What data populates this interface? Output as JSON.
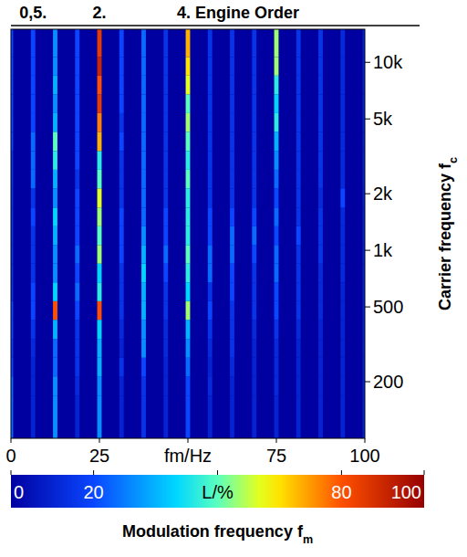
{
  "chart_data": {
    "type": "heatmap",
    "annotations": [
      {
        "text": "0,5.",
        "x": 6.25
      },
      {
        "text": "2.",
        "x": 25
      },
      {
        "text": "4. Engine Order",
        "x": 50
      }
    ],
    "x_label": "Modulation frequency fm",
    "y_label": "Carrier frequency fc",
    "x": [
      0,
      6.25,
      12.5,
      18.75,
      25,
      31.25,
      37.5,
      43.75,
      50,
      56.25,
      62.5,
      68.75,
      75,
      81.25,
      87.5,
      93.75,
      100
    ],
    "y": [
      150,
      190,
      240,
      300,
      380,
      480,
      600,
      760,
      950,
      1200,
      1500,
      1900,
      2400,
      3000,
      3800,
      4800,
      6000,
      7600,
      9500,
      12000
    ],
    "values": [
      [
        25,
        10,
        30,
        10,
        30,
        10,
        15,
        10,
        20,
        10,
        10,
        10,
        10,
        10,
        10,
        10,
        10
      ],
      [
        25,
        10,
        30,
        12,
        30,
        10,
        15,
        10,
        20,
        12,
        10,
        10,
        12,
        10,
        10,
        10,
        10
      ],
      [
        20,
        10,
        25,
        15,
        35,
        15,
        20,
        10,
        25,
        10,
        12,
        10,
        12,
        10,
        10,
        10,
        10
      ],
      [
        18,
        12,
        25,
        15,
        35,
        10,
        30,
        12,
        30,
        12,
        15,
        10,
        12,
        10,
        10,
        10,
        10
      ],
      [
        20,
        15,
        35,
        15,
        40,
        12,
        30,
        12,
        35,
        15,
        15,
        12,
        15,
        12,
        10,
        10,
        10
      ],
      [
        20,
        20,
        80,
        20,
        80,
        15,
        35,
        15,
        55,
        20,
        15,
        15,
        20,
        15,
        12,
        10,
        10
      ],
      [
        15,
        20,
        40,
        25,
        45,
        15,
        35,
        15,
        40,
        15,
        20,
        15,
        20,
        15,
        12,
        10,
        10
      ],
      [
        15,
        15,
        30,
        20,
        40,
        15,
        40,
        20,
        45,
        25,
        20,
        15,
        25,
        15,
        12,
        12,
        10
      ],
      [
        15,
        15,
        30,
        25,
        55,
        20,
        35,
        25,
        50,
        25,
        25,
        20,
        25,
        15,
        15,
        12,
        10
      ],
      [
        15,
        15,
        35,
        20,
        50,
        20,
        30,
        20,
        45,
        20,
        25,
        25,
        20,
        20,
        15,
        12,
        10
      ],
      [
        15,
        20,
        40,
        20,
        55,
        20,
        25,
        20,
        45,
        20,
        20,
        20,
        25,
        15,
        15,
        12,
        10
      ],
      [
        15,
        15,
        30,
        20,
        60,
        15,
        25,
        15,
        45,
        15,
        15,
        15,
        20,
        15,
        12,
        20,
        10
      ],
      [
        15,
        25,
        35,
        15,
        50,
        15,
        25,
        15,
        50,
        15,
        15,
        15,
        25,
        15,
        15,
        12,
        10
      ],
      [
        15,
        25,
        45,
        20,
        45,
        15,
        25,
        15,
        45,
        15,
        15,
        15,
        30,
        15,
        15,
        12,
        10
      ],
      [
        20,
        25,
        50,
        20,
        70,
        20,
        25,
        15,
        50,
        15,
        15,
        15,
        35,
        15,
        15,
        12,
        10
      ],
      [
        20,
        20,
        35,
        20,
        75,
        15,
        25,
        15,
        55,
        15,
        15,
        15,
        45,
        15,
        15,
        12,
        10
      ],
      [
        20,
        20,
        30,
        20,
        85,
        20,
        25,
        15,
        50,
        15,
        15,
        15,
        40,
        15,
        15,
        12,
        10
      ],
      [
        20,
        20,
        35,
        20,
        80,
        20,
        25,
        15,
        60,
        15,
        15,
        15,
        45,
        15,
        15,
        12,
        10
      ],
      [
        20,
        20,
        30,
        20,
        90,
        20,
        25,
        15,
        65,
        15,
        15,
        15,
        55,
        15,
        15,
        12,
        10
      ],
      [
        20,
        20,
        30,
        20,
        85,
        20,
        25,
        15,
        70,
        15,
        15,
        15,
        55,
        15,
        15,
        12,
        10
      ]
    ],
    "xlim": [
      0,
      100
    ],
    "ylim": [
      100,
      15000
    ],
    "xticks": [
      0,
      25,
      {
        "value": 50,
        "label": "fm/Hz"
      },
      75,
      100
    ],
    "yticks": [
      200,
      500,
      {
        "value": 1000,
        "label": "1k"
      },
      {
        "value": 2000,
        "label": "2k"
      },
      {
        "value": 5000,
        "label": "5k"
      },
      {
        "value": 10000,
        "label": "10k"
      }
    ],
    "log": "y",
    "colorbar": {
      "range": [
        0,
        100
      ],
      "ticks": [
        0,
        20,
        {
          "value": 50,
          "label": "L/%"
        },
        80,
        100
      ]
    }
  }
}
